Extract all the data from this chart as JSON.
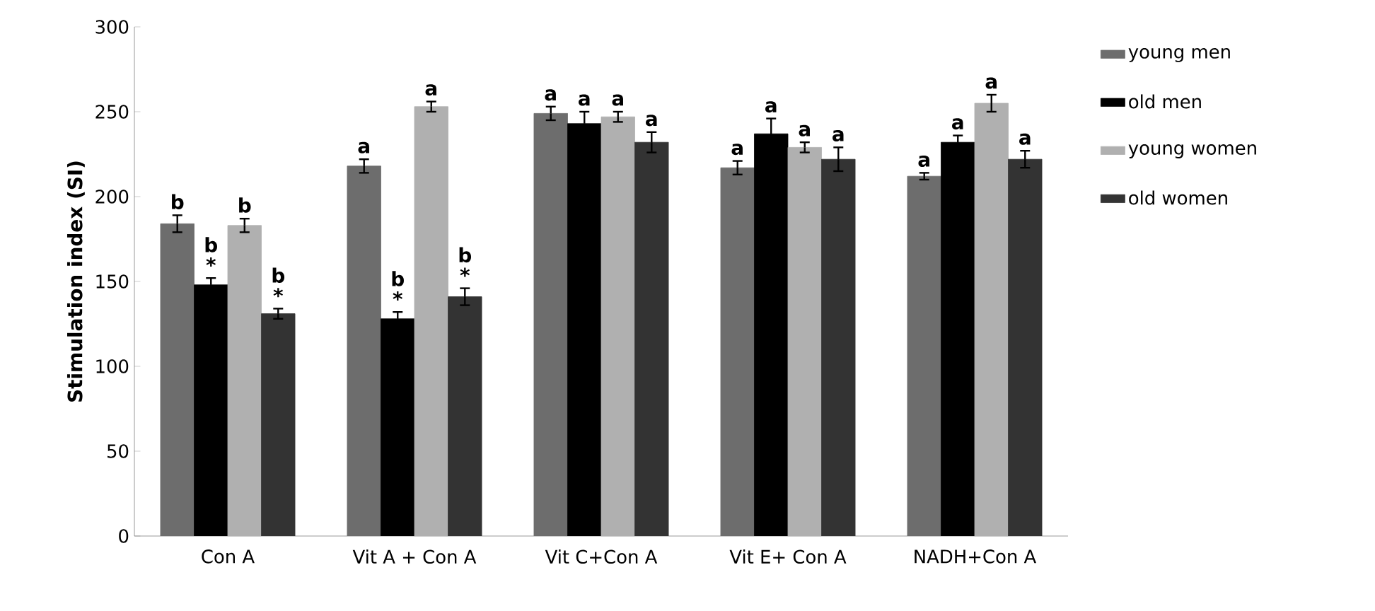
{
  "chart_data": {
    "type": "bar",
    "ylabel": "Stimulation index (SI)",
    "categories": [
      "Con A",
      "Vit A + Con A",
      "Vit C+Con A",
      "Vit E+ Con A",
      "NADH+Con A"
    ],
    "series": [
      {
        "name": "young men",
        "color": "#6d6d6d",
        "values": [
          184,
          218,
          249,
          217,
          212
        ],
        "errors": [
          5,
          4,
          4,
          4,
          2
        ]
      },
      {
        "name": "old men",
        "color": "#000000",
        "values": [
          148,
          128,
          243,
          237,
          232
        ],
        "errors": [
          4,
          4,
          7,
          9,
          4
        ]
      },
      {
        "name": "young women",
        "color": "#b0b0b0",
        "values": [
          183,
          253,
          247,
          229,
          255
        ],
        "errors": [
          4,
          3,
          3,
          3,
          5
        ]
      },
      {
        "name": "old women",
        "color": "#333333",
        "values": [
          131,
          141,
          232,
          222,
          222
        ],
        "errors": [
          3,
          5,
          6,
          7,
          5
        ]
      }
    ],
    "ylim": [
      0,
      300
    ],
    "yticks": [
      0,
      50,
      100,
      150,
      200,
      250,
      300
    ],
    "grid": false,
    "legend": "right",
    "annotations": [
      {
        "text": "b",
        "x": "Con A",
        "y": 184
      },
      {
        "text": "*",
        "x": "Con A",
        "y": 148
      },
      {
        "text": "b",
        "x": "Con A",
        "y": 148
      },
      {
        "text": "b",
        "x": "Con A",
        "y": 183
      },
      {
        "text": "*",
        "x": "Con A",
        "y": 131
      },
      {
        "text": "b",
        "x": "Con A",
        "y": 131
      },
      {
        "text": "a",
        "x": "Vit A + Con A",
        "y": 218
      },
      {
        "text": "*",
        "x": "Vit A + Con A",
        "y": 128
      },
      {
        "text": "b",
        "x": "Vit A + Con A",
        "y": 128
      },
      {
        "text": "a",
        "x": "Vit A + Con A",
        "y": 253
      },
      {
        "text": "*",
        "x": "Vit A + Con A",
        "y": 141
      },
      {
        "text": "b",
        "x": "Vit A + Con A",
        "y": 141
      },
      {
        "text": "a",
        "x": "Vit C+Con A",
        "y": 249
      },
      {
        "text": "a",
        "x": "Vit C+Con A",
        "y": 243
      },
      {
        "text": "a",
        "x": "Vit C+Con A",
        "y": 247
      },
      {
        "text": "a",
        "x": "Vit C+Con A",
        "y": 232
      },
      {
        "text": "a",
        "x": "Vit E+ Con A",
        "y": 217
      },
      {
        "text": "a",
        "x": "Vit E+ Con A",
        "y": 237
      },
      {
        "text": "a",
        "x": "Vit E+ Con A",
        "y": 229
      },
      {
        "text": "a",
        "x": "Vit E+ Con A",
        "y": 222
      },
      {
        "text": "a",
        "x": "NADH+Con A",
        "y": 212
      },
      {
        "text": "a",
        "x": "NADH+Con A",
        "y": 232
      },
      {
        "text": "a",
        "x": "NADH+Con A",
        "y": 255
      },
      {
        "text": "a",
        "x": "NADH+Con A",
        "y": 222
      }
    ]
  }
}
